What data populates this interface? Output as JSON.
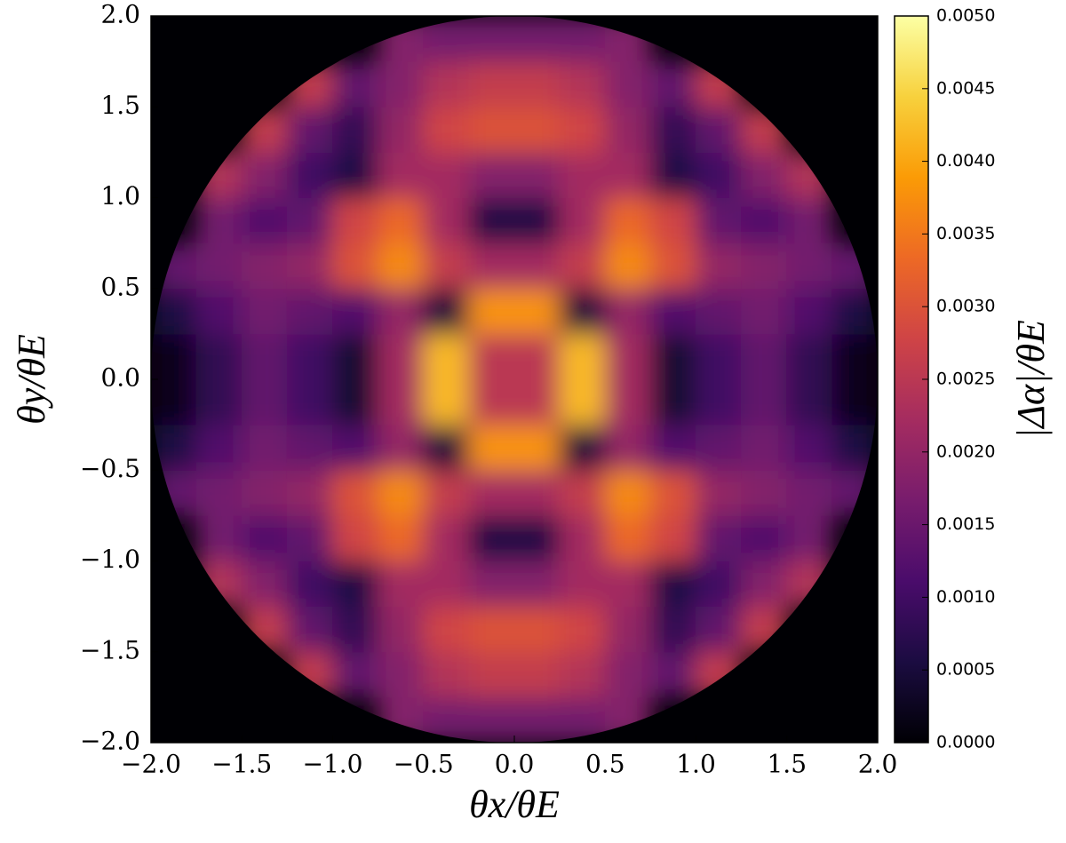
{
  "chart_data": {
    "type": "heatmap",
    "xlabel": "θx/θE",
    "ylabel": "θy/θE",
    "colorbar_label": "|Δα|/θE",
    "colormap": [
      "#000004",
      "#1b0c41",
      "#4a0c6b",
      "#781c6d",
      "#a52c60",
      "#cf4446",
      "#ed6925",
      "#fb9b06",
      "#f7d13d",
      "#fcffa4"
    ],
    "xlim": [
      -2,
      2
    ],
    "ylim": [
      -2,
      2
    ],
    "zlim": [
      0,
      0.005
    ],
    "xticks": [
      {
        "value": -2,
        "label": "−2.0"
      },
      {
        "value": -1.5,
        "label": "−1.5"
      },
      {
        "value": -1,
        "label": "−1.0"
      },
      {
        "value": -0.5,
        "label": "−0.5"
      },
      {
        "value": 0,
        "label": "0.0"
      },
      0.5,
      {
        "value": 1,
        "label": "1.0"
      },
      1.5,
      {
        "value": 2,
        "label": "2.0"
      }
    ],
    "yticks": [
      {
        "value": -2,
        "label": "−2.0"
      },
      {
        "value": -1.5,
        "label": "−1.5"
      },
      {
        "value": -1,
        "label": "−1.0"
      },
      {
        "value": -0.5,
        "label": "−0.5"
      },
      {
        "value": 0,
        "label": "0.0"
      },
      0.5,
      {
        "value": 1,
        "label": "1.0"
      },
      1.5,
      {
        "value": 2,
        "label": "2.0"
      }
    ],
    "zticks": [
      {
        "value": 0,
        "label": "0.0000"
      },
      {
        "value": 0.0005,
        "label": "0.0005"
      },
      {
        "value": 0.001,
        "label": "0.0010"
      },
      {
        "value": 0.0015,
        "label": "0.0015"
      },
      {
        "value": 0.002,
        "label": "0.0020"
      },
      {
        "value": 0.0025,
        "label": "0.0025"
      },
      {
        "value": 0.003,
        "label": "0.0030"
      },
      {
        "value": 0.0035,
        "label": "0.0035"
      },
      {
        "value": 0.004,
        "label": "0.0040"
      },
      {
        "value": 0.0045,
        "label": "0.0045"
      },
      {
        "value": 0.005,
        "label": "0.0050"
      }
    ],
    "x": [
      -1.875,
      -1.625,
      -1.375,
      -1.125,
      -0.875,
      -0.625,
      -0.375,
      -0.125,
      0.125,
      0.375,
      0.625,
      0.875,
      1.125,
      1.375,
      1.625,
      1.875
    ],
    "y": [
      -1.875,
      -1.625,
      -1.375,
      -1.125,
      -0.875,
      -0.625,
      -0.375,
      -0.125,
      0.125,
      0.375,
      0.625,
      0.875,
      1.125,
      1.375,
      1.625,
      1.875
    ],
    "z": [
      [
        null,
        null,
        null,
        null,
        null,
        0.0018,
        0.0016,
        0.0016,
        0.0016,
        0.0016,
        0.0018,
        null,
        null,
        null,
        null,
        null
      ],
      [
        null,
        null,
        null,
        0.0026,
        0.0014,
        0.0018,
        0.0024,
        0.0026,
        0.0026,
        0.0024,
        0.0018,
        0.0014,
        0.0026,
        null,
        null,
        null
      ],
      [
        null,
        null,
        0.0026,
        0.0014,
        0.0008,
        0.002,
        0.0028,
        0.003,
        0.003,
        0.0028,
        0.002,
        0.0008,
        0.0014,
        0.0026,
        null,
        null
      ],
      [
        null,
        0.0024,
        0.0018,
        0.001,
        0.0006,
        0.0022,
        0.0022,
        0.0018,
        0.0018,
        0.0022,
        0.0022,
        0.0006,
        0.001,
        0.0018,
        0.0024,
        null
      ],
      [
        null,
        0.0016,
        0.0012,
        0.0014,
        0.0028,
        0.0033,
        0.0022,
        0.0006,
        0.0006,
        0.0022,
        0.0033,
        0.0028,
        0.0014,
        0.0012,
        0.0016,
        null
      ],
      [
        0.0014,
        0.0016,
        0.0018,
        0.002,
        0.003,
        0.0037,
        0.0026,
        0.0022,
        0.0022,
        0.0026,
        0.0037,
        0.003,
        0.002,
        0.0018,
        0.0016,
        0.0014
      ],
      [
        0.0006,
        0.0012,
        0.0016,
        0.0014,
        0.0012,
        0.002,
        0.0005,
        0.0038,
        0.0038,
        0.0005,
        0.002,
        0.0012,
        0.0014,
        0.0016,
        0.0012,
        0.0006
      ],
      [
        0.0002,
        0.0008,
        0.0014,
        0.001,
        0.0004,
        0.0022,
        0.0042,
        0.0025,
        0.0025,
        0.0042,
        0.0022,
        0.0004,
        0.001,
        0.0014,
        0.0008,
        0.0002
      ],
      [
        0.0002,
        0.0008,
        0.0014,
        0.001,
        0.0004,
        0.0022,
        0.0042,
        0.0025,
        0.0025,
        0.0042,
        0.0022,
        0.0004,
        0.001,
        0.0014,
        0.0008,
        0.0002
      ],
      [
        0.0006,
        0.0012,
        0.0016,
        0.0014,
        0.0012,
        0.002,
        0.0005,
        0.0038,
        0.0038,
        0.0005,
        0.002,
        0.0012,
        0.0014,
        0.0016,
        0.0012,
        0.0006
      ],
      [
        0.0014,
        0.0016,
        0.0018,
        0.002,
        0.003,
        0.0037,
        0.0026,
        0.0022,
        0.0022,
        0.0026,
        0.0037,
        0.003,
        0.002,
        0.0018,
        0.0016,
        0.0014
      ],
      [
        null,
        0.0016,
        0.0012,
        0.0014,
        0.0028,
        0.0033,
        0.0022,
        0.0006,
        0.0006,
        0.0022,
        0.0033,
        0.0028,
        0.0014,
        0.0012,
        0.0016,
        null
      ],
      [
        null,
        0.0024,
        0.0018,
        0.001,
        0.0006,
        0.0022,
        0.0022,
        0.0018,
        0.0018,
        0.0022,
        0.0022,
        0.0006,
        0.001,
        0.0018,
        0.0024,
        null
      ],
      [
        null,
        null,
        0.0026,
        0.0014,
        0.0008,
        0.002,
        0.0028,
        0.003,
        0.003,
        0.0028,
        0.002,
        0.0008,
        0.0014,
        0.0026,
        null,
        null
      ],
      [
        null,
        null,
        null,
        0.0026,
        0.0014,
        0.0018,
        0.0024,
        0.0026,
        0.0026,
        0.0024,
        0.0018,
        0.0014,
        0.0026,
        null,
        null,
        null
      ],
      [
        null,
        null,
        null,
        null,
        null,
        0.0018,
        0.0016,
        0.0016,
        0.0016,
        0.0016,
        0.0018,
        null,
        null,
        null,
        null,
        null
      ]
    ]
  }
}
